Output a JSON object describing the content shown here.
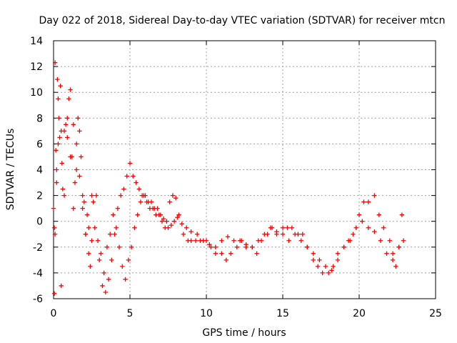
{
  "chart_data": {
    "type": "scatter",
    "title": "Day 022 of 2018, Sidereal Day-to-day VTEC variation (SDTVAR) for receiver mtcn",
    "xlabel": "GPS time / hours",
    "ylabel": "SDTVAR / TECUs",
    "xlim": [
      0,
      25
    ],
    "ylim": [
      -6,
      14
    ],
    "xticks": [
      0,
      5,
      10,
      15,
      20,
      25
    ],
    "yticks": [
      -6,
      -4,
      -2,
      0,
      2,
      4,
      6,
      8,
      10,
      12,
      14
    ],
    "grid": true,
    "marker": "+",
    "color": "#ff0000",
    "series": [
      {
        "name": "SDTVAR",
        "x": [
          0.0,
          0.05,
          0.1,
          0.15,
          0.2,
          0.25,
          0.3,
          0.35,
          0.4,
          0.45,
          0.5,
          0.55,
          0.6,
          0.7,
          0.8,
          0.9,
          1.0,
          1.1,
          1.2,
          1.3,
          1.4,
          1.5,
          1.6,
          1.7,
          1.8,
          1.9,
          2.0,
          2.1,
          2.2,
          2.3,
          2.4,
          2.5,
          2.6,
          2.8,
          3.0,
          3.2,
          3.4,
          3.6,
          3.8,
          4.0,
          4.2,
          4.4,
          4.6,
          4.8,
          5.0,
          5.2,
          5.4,
          5.6,
          5.8,
          6.0,
          6.2,
          6.4,
          6.6,
          6.8,
          7.0,
          7.2,
          7.4,
          7.6,
          7.8,
          8.0,
          8.2,
          8.5,
          8.8,
          9.0,
          9.3,
          9.6,
          10.0,
          10.3,
          10.6,
          11.0,
          11.3,
          11.6,
          12.0,
          12.3,
          12.6,
          13.0,
          13.3,
          13.6,
          14.0,
          14.3,
          14.6,
          15.0,
          15.3,
          15.6,
          16.0,
          16.3,
          16.6,
          17.0,
          17.3,
          17.6,
          18.0,
          18.3,
          18.6,
          19.0,
          19.3,
          19.6,
          20.0,
          20.3,
          20.6,
          21.0,
          21.3,
          21.6,
          22.0,
          22.2,
          22.4,
          22.6,
          22.8,
          0.05,
          0.1,
          0.2,
          0.3,
          0.5,
          0.7,
          0.9,
          1.1,
          1.3,
          1.5,
          1.7,
          1.9,
          2.1,
          2.3,
          2.5,
          2.7,
          2.9,
          3.1,
          3.3,
          3.5,
          3.7,
          3.9,
          4.1,
          4.3,
          4.5,
          4.7,
          4.9,
          5.1,
          5.3,
          5.5,
          5.7,
          5.9,
          6.1,
          6.3,
          6.5,
          6.7,
          6.9,
          7.1,
          7.3,
          7.5,
          7.7,
          7.9,
          8.1,
          8.4,
          8.7,
          9.0,
          9.4,
          9.8,
          10.2,
          10.6,
          11.0,
          11.4,
          11.8,
          12.2,
          12.6,
          13.0,
          13.4,
          13.8,
          14.2,
          14.6,
          15.0,
          15.4,
          15.8,
          16.2,
          16.6,
          17.0,
          17.4,
          17.8,
          18.2,
          18.6,
          19.0,
          19.4,
          19.8,
          20.2,
          20.6,
          21.0,
          21.4,
          21.8,
          22.2,
          22.6,
          22.9
        ],
        "y": [
          1.0,
          -5.6,
          12.3,
          5.5,
          3.0,
          11.0,
          9.5,
          8.0,
          6.5,
          10.5,
          7.0,
          4.5,
          2.5,
          7.0,
          7.5,
          6.5,
          9.5,
          10.2,
          5.0,
          7.5,
          3.0,
          4.0,
          8.0,
          7.0,
          5.0,
          2.0,
          1.5,
          -1.0,
          0.5,
          -2.5,
          -3.5,
          -1.5,
          1.5,
          2.0,
          -3.0,
          -5.0,
          -5.5,
          -4.5,
          -3.0,
          -1.0,
          1.0,
          2.0,
          2.5,
          3.5,
          4.5,
          3.5,
          3.0,
          2.5,
          2.0,
          2.0,
          1.5,
          1.5,
          1.0,
          1.0,
          0.5,
          0.2,
          0.0,
          1.5,
          2.0,
          1.8,
          0.5,
          -1.0,
          -1.5,
          -1.5,
          -1.5,
          -1.5,
          -1.5,
          -2.0,
          -2.5,
          -2.5,
          -3.0,
          -2.5,
          -2.0,
          -1.5,
          -2.0,
          -2.0,
          -2.5,
          -1.5,
          -1.0,
          -0.5,
          -1.0,
          -0.5,
          -0.5,
          -0.5,
          -1.0,
          -1.0,
          -2.0,
          -3.0,
          -3.5,
          -4.0,
          -4.0,
          -3.5,
          -3.0,
          -2.0,
          -1.5,
          -1.0,
          0.5,
          1.5,
          1.5,
          2.0,
          0.5,
          -0.5,
          -1.5,
          -2.5,
          -3.5,
          -2.0,
          0.5,
          -0.5,
          -1.0,
          4.0,
          6.0,
          -5.0,
          2.0,
          8.0,
          5.0,
          1.0,
          6.0,
          3.5,
          1.0,
          -1.0,
          -0.5,
          2.0,
          -0.5,
          -1.5,
          -2.5,
          -4.0,
          -2.0,
          -1.0,
          0.5,
          -0.5,
          -2.0,
          -3.5,
          -4.5,
          -3.0,
          -2.0,
          -0.5,
          0.5,
          1.5,
          2.0,
          1.5,
          1.0,
          1.0,
          0.5,
          0.5,
          0.0,
          -0.5,
          -0.5,
          -0.3,
          0.0,
          0.3,
          -0.2,
          -0.5,
          -0.8,
          -1.0,
          -1.5,
          -1.8,
          -2.0,
          -1.5,
          -1.2,
          -1.5,
          -1.5,
          -1.8,
          -2.0,
          -1.5,
          -1.0,
          -0.5,
          -0.8,
          -1.0,
          -1.5,
          -1.0,
          -1.5,
          -2.0,
          -2.5,
          -3.0,
          -3.5,
          -3.8,
          -2.5,
          -2.0,
          -1.5,
          -0.5,
          0.0,
          -0.5,
          -0.8,
          -1.5,
          -2.5,
          -3.0,
          -2.0,
          -1.5
        ]
      }
    ]
  }
}
